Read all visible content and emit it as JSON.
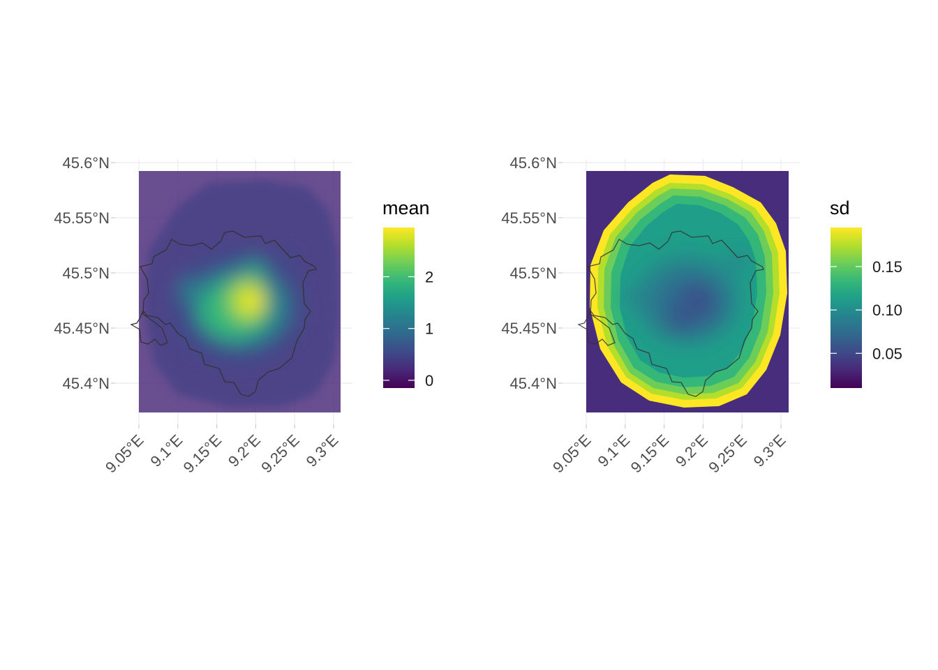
{
  "panels": [
    {
      "id": "mean",
      "legend": {
        "title": "mean",
        "min": -0.15,
        "max": 2.95,
        "breaks": [
          0,
          1,
          2
        ],
        "labels": [
          "0",
          "1",
          "2"
        ]
      },
      "y_labels": [
        "45.6°N",
        "45.55°N",
        "45.5°N",
        "45.45°N",
        "45.4°N"
      ],
      "x_labels": [
        "9.05°E",
        "9.1°E",
        "9.15°E",
        "9.2°E",
        "9.25°E",
        "9.3°E"
      ]
    },
    {
      "id": "sd",
      "legend": {
        "title": "sd",
        "min": 0.01,
        "max": 0.195,
        "breaks": [
          0.05,
          0.1,
          0.15
        ],
        "labels": [
          "0.05",
          "0.10",
          "0.15"
        ]
      },
      "y_labels": [
        "45.6°N",
        "45.55°N",
        "45.5°N",
        "45.45°N",
        "45.4°N"
      ],
      "x_labels": [
        "9.05°E",
        "9.1°E",
        "9.15°E",
        "9.2°E",
        "9.25°E",
        "9.3°E"
      ]
    }
  ],
  "map": {
    "lon_ticks": [
      9.05,
      9.1,
      9.15,
      9.2,
      9.25,
      9.3
    ],
    "lat_ticks": [
      45.6,
      45.55,
      45.5,
      45.45,
      45.4
    ],
    "lon_range": [
      9.05,
      9.305
    ],
    "lat_range": [
      45.36,
      45.59
    ],
    "palette": "viridis",
    "colors": {
      "viridis": [
        "#440154",
        "#482878",
        "#3E4A89",
        "#31688E",
        "#26828E",
        "#1F9E89",
        "#35B779",
        "#6DCD59",
        "#B4DE2C",
        "#FDE725"
      ],
      "boundary": "#333333",
      "grid": "#ebebeb"
    }
  }
}
